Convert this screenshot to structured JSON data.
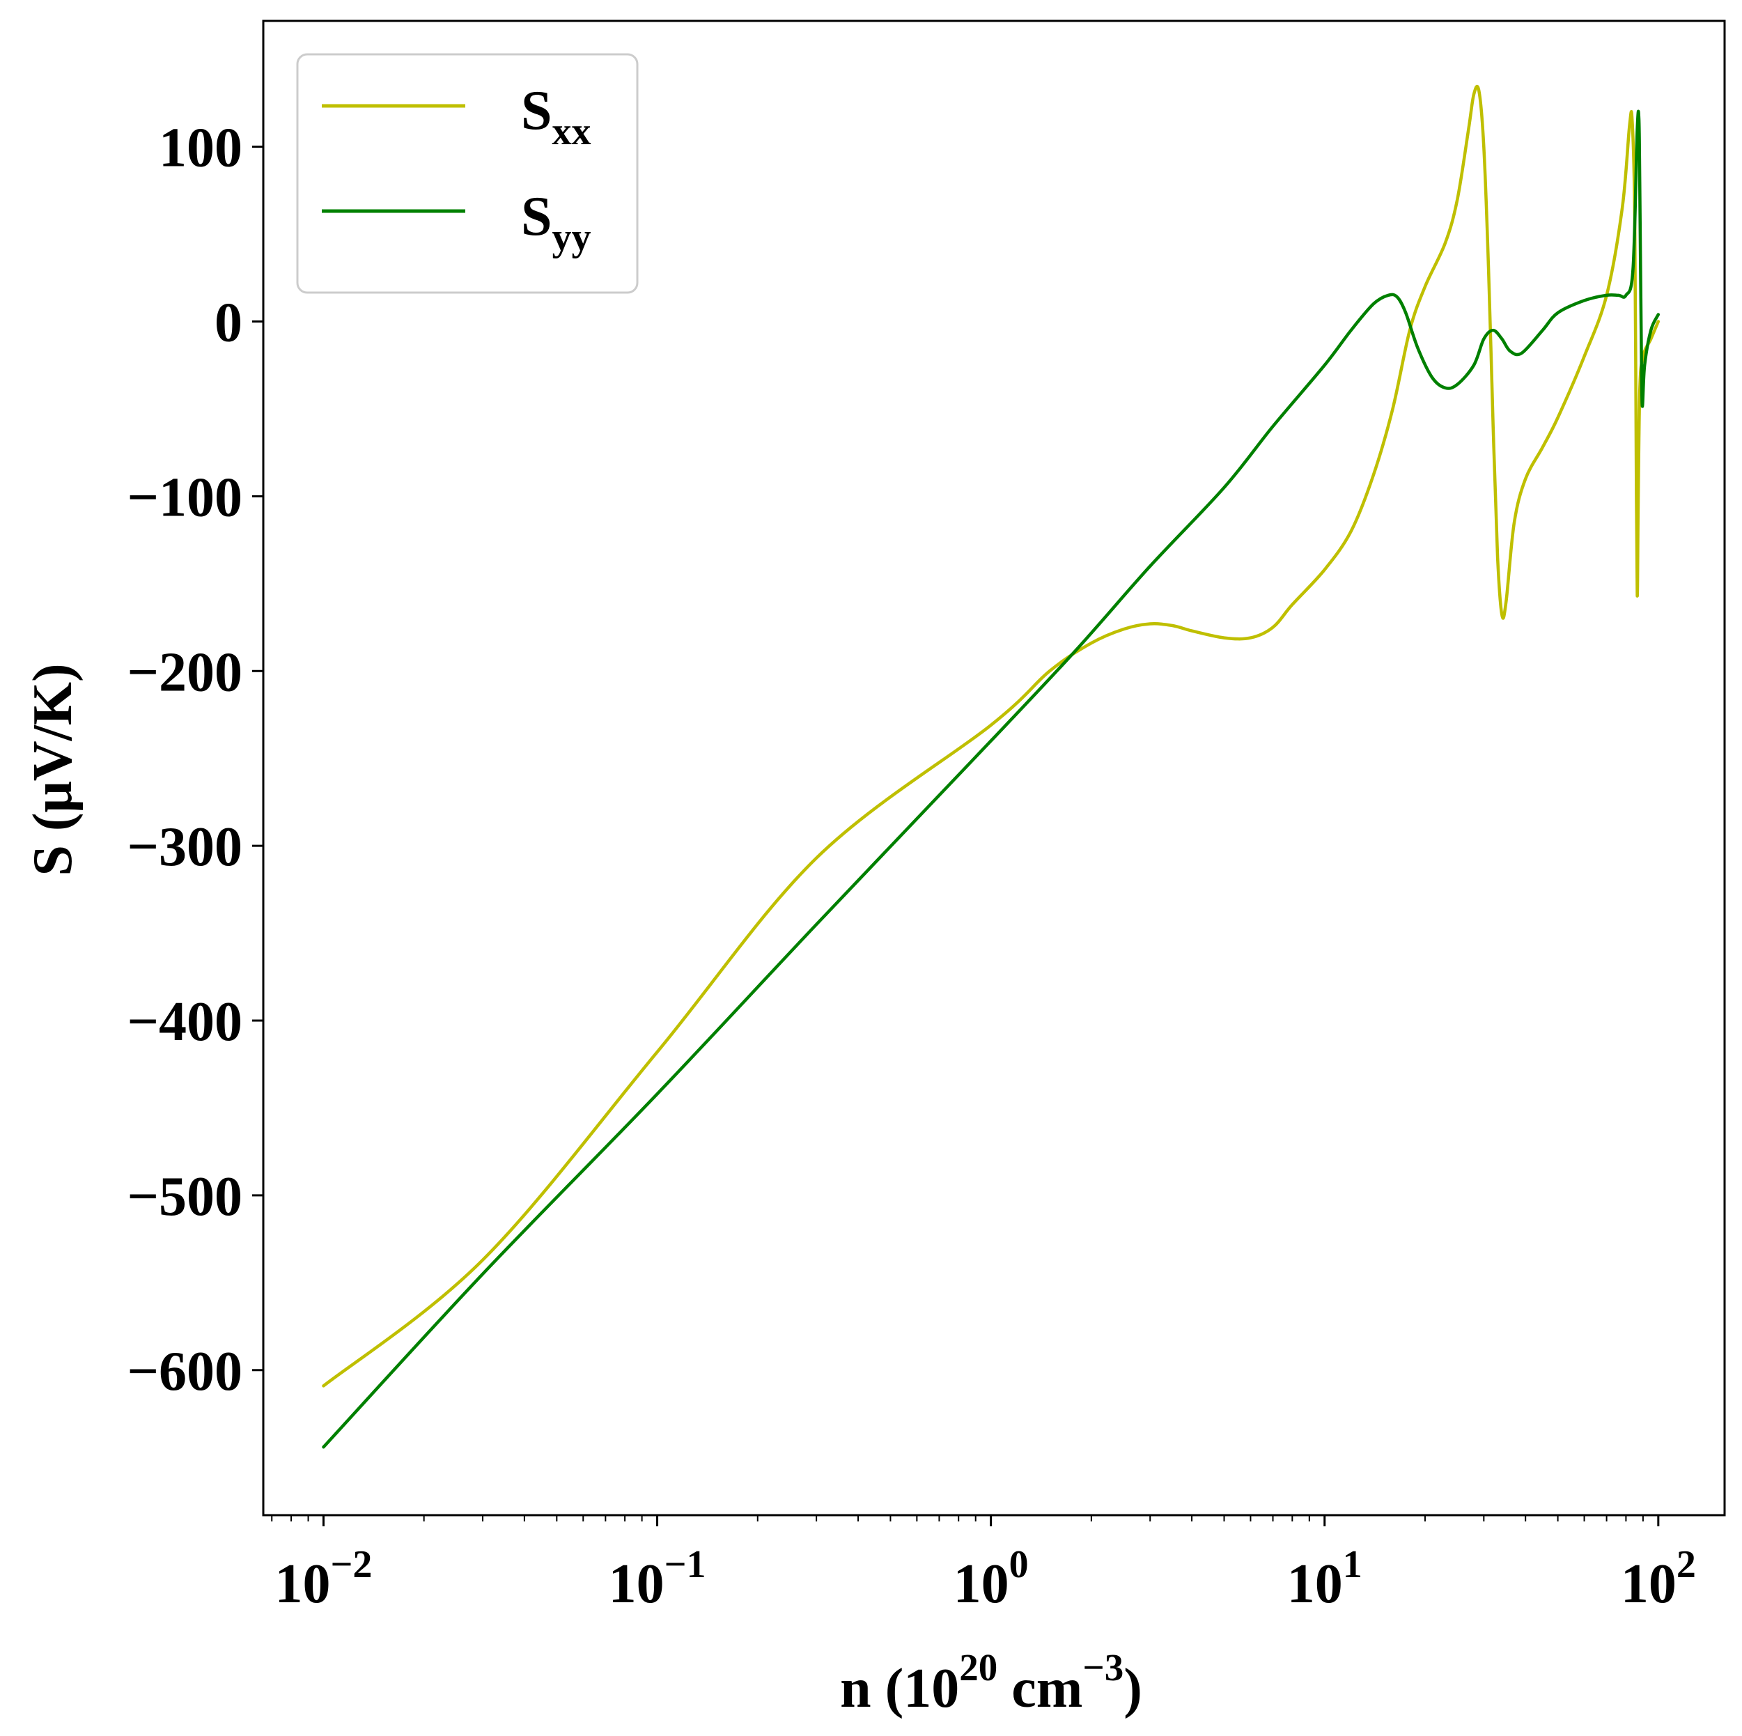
{
  "chart_data": {
    "type": "line",
    "xscale": "log",
    "xlabel_parts": {
      "prefix": "n (10",
      "sup1": "20",
      "mid": " cm",
      "sup2": "−3",
      "suffix": ")"
    },
    "ylabel": "S (μV/K)",
    "xlim": [
      0.0066,
      158
    ],
    "ylim": [
      -683,
      172
    ],
    "x_major_ticks": [
      0.01,
      0.1,
      1,
      10,
      100
    ],
    "x_tick_labels": [
      {
        "base": "10",
        "exp": "−2"
      },
      {
        "base": "10",
        "exp": "−1"
      },
      {
        "base": "10",
        "exp": "0"
      },
      {
        "base": "10",
        "exp": "1"
      },
      {
        "base": "10",
        "exp": "2"
      }
    ],
    "y_ticks": [
      100,
      0,
      -100,
      -200,
      -300,
      -400,
      -500,
      -600
    ],
    "y_tick_labels": [
      "100",
      "0",
      "−100",
      "−200",
      "−300",
      "−400",
      "−500",
      "−600"
    ],
    "grid": false,
    "legend_position": "top-left",
    "series": [
      {
        "name_base": "S",
        "name_sub": "xx",
        "color": "#bfbf00",
        "points": [
          [
            0.01,
            -609
          ],
          [
            0.03,
            -537
          ],
          [
            0.1,
            -418
          ],
          [
            0.3,
            -307
          ],
          [
            1.0,
            -231
          ],
          [
            1.5,
            -200
          ],
          [
            2.0,
            -184
          ],
          [
            2.5,
            -176
          ],
          [
            3.0,
            -173
          ],
          [
            3.5,
            -174
          ],
          [
            4.0,
            -177
          ],
          [
            5.0,
            -181
          ],
          [
            6.0,
            -181
          ],
          [
            7.0,
            -175
          ],
          [
            8.0,
            -162
          ],
          [
            10.0,
            -142
          ],
          [
            12.0,
            -120
          ],
          [
            14.0,
            -88
          ],
          [
            16.0,
            -50
          ],
          [
            18.0,
            -5
          ],
          [
            20.0,
            20
          ],
          [
            23.0,
            45
          ],
          [
            25.0,
            70
          ],
          [
            27.0,
            110
          ],
          [
            28.0,
            130
          ],
          [
            29.0,
            132
          ],
          [
            30.0,
            100
          ],
          [
            31.0,
            30
          ],
          [
            32.0,
            -60
          ],
          [
            33.0,
            -135
          ],
          [
            34.0,
            -168
          ],
          [
            35.0,
            -160
          ],
          [
            37.0,
            -115
          ],
          [
            40.0,
            -90
          ],
          [
            45.0,
            -72
          ],
          [
            50.0,
            -55
          ],
          [
            60.0,
            -20
          ],
          [
            70.0,
            15
          ],
          [
            78.0,
            65
          ],
          [
            82.0,
            112
          ],
          [
            83.5,
            115
          ],
          [
            85.0,
            60
          ],
          [
            86.0,
            -100
          ],
          [
            86.5,
            -157
          ],
          [
            87.0,
            -110
          ],
          [
            88.0,
            -40
          ],
          [
            90.0,
            -20
          ],
          [
            95.0,
            -10
          ],
          [
            100.0,
            0
          ]
        ]
      },
      {
        "name_base": "S",
        "name_sub": "yy",
        "color": "#008000",
        "points": [
          [
            0.01,
            -644
          ],
          [
            0.03,
            -545
          ],
          [
            0.1,
            -442
          ],
          [
            0.3,
            -345
          ],
          [
            1.0,
            -240
          ],
          [
            1.8,
            -188
          ],
          [
            3.0,
            -140
          ],
          [
            5.0,
            -95
          ],
          [
            7.0,
            -60
          ],
          [
            10.0,
            -25
          ],
          [
            12.0,
            -5
          ],
          [
            14.0,
            10
          ],
          [
            15.5,
            15
          ],
          [
            16.5,
            14
          ],
          [
            17.5,
            5
          ],
          [
            19.0,
            -15
          ],
          [
            21.0,
            -32
          ],
          [
            23.0,
            -38
          ],
          [
            25.0,
            -36
          ],
          [
            28.0,
            -25
          ],
          [
            30.0,
            -10
          ],
          [
            32.0,
            -5
          ],
          [
            34.0,
            -10
          ],
          [
            36.0,
            -17
          ],
          [
            39.0,
            -18
          ],
          [
            45.0,
            -5
          ],
          [
            50.0,
            5
          ],
          [
            60.0,
            12
          ],
          [
            70.0,
            15
          ],
          [
            76.0,
            15
          ],
          [
            80.0,
            15
          ],
          [
            84.0,
            30
          ],
          [
            86.5,
            110
          ],
          [
            87.5,
            116
          ],
          [
            88.0,
            80
          ],
          [
            88.8,
            0
          ],
          [
            89.5,
            -48
          ],
          [
            91.0,
            -25
          ],
          [
            95.0,
            -5
          ],
          [
            100.0,
            4
          ]
        ]
      }
    ]
  }
}
